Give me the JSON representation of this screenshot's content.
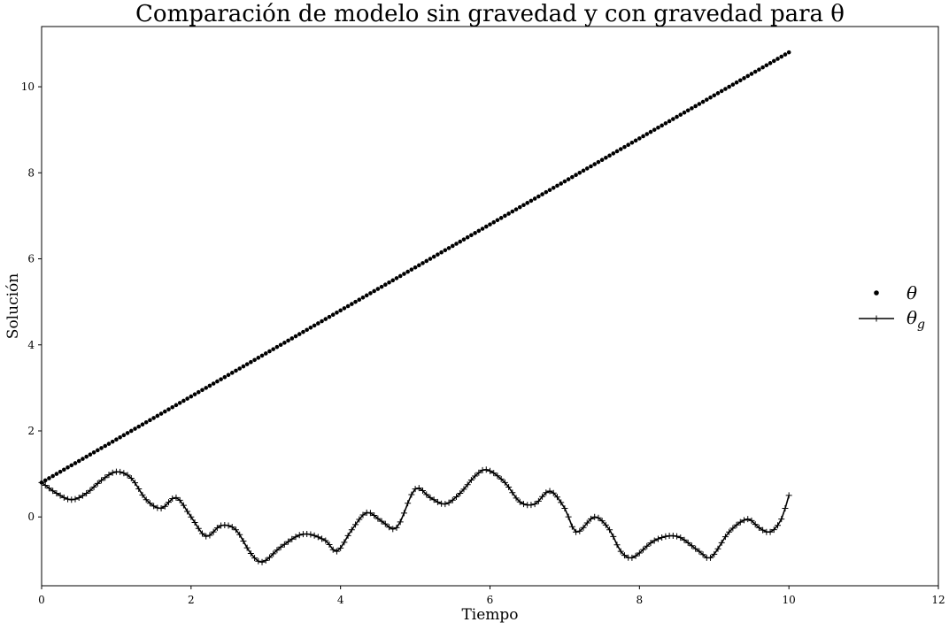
{
  "chart_data": {
    "type": "line",
    "title": "Comparación de modelo sin gravedad y con gravedad para θ",
    "xlabel": "Tiempo",
    "ylabel": "Solución",
    "xlim": [
      0,
      12
    ],
    "ylim": [
      -1.6,
      11.4
    ],
    "xticks": [
      0,
      2,
      4,
      6,
      8,
      10,
      12
    ],
    "yticks": [
      0,
      2,
      4,
      6,
      8,
      10
    ],
    "grid": false,
    "legend_position": "right",
    "series": [
      {
        "name": "θ",
        "legend_main": "θ",
        "legend_sub": "",
        "style": "points",
        "marker": "dot",
        "color": "#000000",
        "x_start": 0,
        "x_end": 10,
        "n_points": 201,
        "y_start": 0.8,
        "y_end": 10.8
      },
      {
        "name": "θg",
        "legend_main": "θ",
        "legend_sub": "g",
        "style": "line",
        "marker": "plus",
        "color": "#000000",
        "x": [
          0,
          0.2,
          0.4,
          0.6,
          0.8,
          1.0,
          1.2,
          1.4,
          1.6,
          1.8,
          2.0,
          2.2,
          2.4,
          2.6,
          2.8,
          2.95,
          3.2,
          3.5,
          3.8,
          3.95,
          4.15,
          4.35,
          4.55,
          4.75,
          5.0,
          5.2,
          5.4,
          5.6,
          5.8,
          5.95,
          6.2,
          6.4,
          6.6,
          6.8,
          7.0,
          7.15,
          7.4,
          7.6,
          7.75,
          7.9,
          8.2,
          8.5,
          8.8,
          8.95,
          9.2,
          9.45,
          9.6,
          9.75,
          9.9,
          10.0
        ],
        "y": [
          0.8,
          0.55,
          0.4,
          0.55,
          0.85,
          1.05,
          0.9,
          0.4,
          0.2,
          0.45,
          0.0,
          -0.45,
          -0.2,
          -0.3,
          -0.85,
          -1.05,
          -0.7,
          -0.4,
          -0.55,
          -0.8,
          -0.3,
          0.1,
          -0.1,
          -0.25,
          0.65,
          0.45,
          0.3,
          0.55,
          0.95,
          1.1,
          0.8,
          0.35,
          0.3,
          0.6,
          0.2,
          -0.35,
          0.0,
          -0.3,
          -0.8,
          -0.95,
          -0.55,
          -0.45,
          -0.8,
          -0.95,
          -0.35,
          -0.05,
          -0.25,
          -0.35,
          -0.05,
          0.5
        ]
      }
    ]
  }
}
